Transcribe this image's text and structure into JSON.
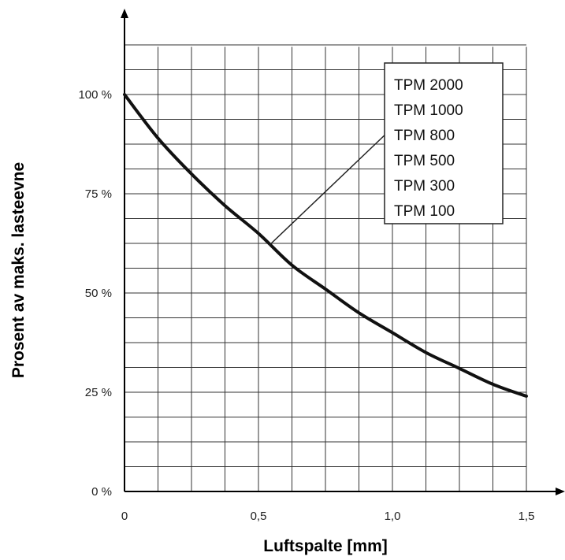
{
  "chart_data": {
    "type": "line",
    "title": "",
    "xlabel": "Luftspalte [mm]",
    "ylabel": "Prosent av maks. lasteevne",
    "xlim": [
      0,
      1.5
    ],
    "ylim": [
      0,
      1.0
    ],
    "y_grid_top": 1.12,
    "x_ticks": [
      {
        "value": 0,
        "label": "0"
      },
      {
        "value": 0.5,
        "label": "0,5"
      },
      {
        "value": 1.0,
        "label": "1,0"
      },
      {
        "value": 1.5,
        "label": "1,5"
      }
    ],
    "y_ticks": [
      {
        "value": 0,
        "label": "0 %"
      },
      {
        "value": 0.25,
        "label": "25 %"
      },
      {
        "value": 0.5,
        "label": "50 %"
      },
      {
        "value": 0.75,
        "label": "75 %"
      },
      {
        "value": 1.0,
        "label": "100 %"
      }
    ],
    "grid": true,
    "x_grid_step": 0.125,
    "y_grid_step": 0.0625,
    "legend": {
      "placement": "top-right",
      "entries": [
        "TPM 2000",
        "TPM 1000",
        "TPM 800",
        "TPM 500",
        "TPM 300",
        "TPM 100"
      ],
      "pointer_to": {
        "x": 0.54,
        "y": 0.62
      }
    },
    "series": [
      {
        "x": [
          0,
          0.125,
          0.25,
          0.375,
          0.5,
          0.625,
          0.75,
          0.875,
          1.0,
          1.125,
          1.25,
          1.375,
          1.5
        ],
        "y": [
          1.0,
          0.89,
          0.8,
          0.72,
          0.65,
          0.57,
          0.51,
          0.45,
          0.4,
          0.35,
          0.31,
          0.27,
          0.24
        ]
      }
    ]
  }
}
